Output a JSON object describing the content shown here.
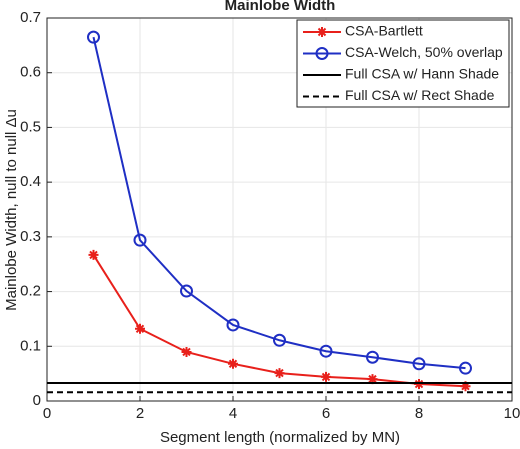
{
  "chart_data": {
    "type": "line",
    "title": "Mainlobe Width",
    "x_label": "Segment length (normalized by MN)",
    "y_label": "Mainlobe Width, null to null Δu",
    "xlim": [
      0,
      10
    ],
    "xticks": [
      0,
      2,
      4,
      6,
      8,
      10
    ],
    "ylim": [
      0,
      0.7
    ],
    "yticks": [
      0,
      0.1,
      0.2,
      0.3,
      0.4,
      0.5,
      0.6,
      0.7
    ],
    "grid": true,
    "legend": "upper right",
    "series": [
      {
        "name": "CSA-Bartlett",
        "color": "#e8201b",
        "marker": "star",
        "linestyle": "solid",
        "x": [
          1,
          2,
          3,
          4,
          5,
          6,
          7,
          8,
          9
        ],
        "values": [
          0.267,
          0.132,
          0.0896,
          0.068,
          0.051,
          0.044,
          0.04,
          0.031,
          0.027
        ]
      },
      {
        "name": "CSA-Welch, 50% overlap",
        "color": "#1f2fc4",
        "marker": "circle",
        "linestyle": "solid",
        "x": [
          1,
          2,
          3,
          4,
          5,
          6,
          7,
          8,
          9
        ],
        "values": [
          0.665,
          0.294,
          0.201,
          0.139,
          0.111,
          0.091,
          0.08,
          0.068,
          0.06
        ]
      },
      {
        "name": "Full CSA w/ Hann Shade",
        "color": "#000000",
        "linestyle": "solid",
        "x": [
          0,
          10
        ],
        "values": [
          0.033,
          0.033
        ]
      },
      {
        "name": "Full CSA w/ Rect Shade",
        "color": "#000000",
        "linestyle": "dashed",
        "x": [
          0,
          10
        ],
        "values": [
          0.016,
          0.016
        ]
      }
    ]
  }
}
